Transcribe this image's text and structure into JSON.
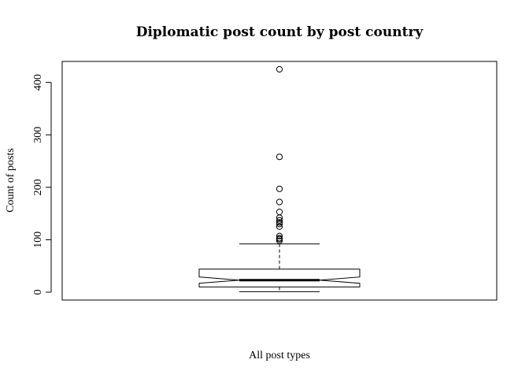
{
  "chart_data": {
    "type": "boxplot",
    "title": "Diplomatic post count by post country",
    "xlabel": "All post types",
    "ylabel": "Count of posts",
    "notched": true,
    "ylim": [
      -15,
      440
    ],
    "yticks": [
      0,
      100,
      200,
      300,
      400
    ],
    "box": {
      "whisker_low": 1,
      "q1": 10,
      "notch_low": 17,
      "median": 23,
      "notch_high": 29,
      "q3": 44,
      "whisker_high": 92
    },
    "outliers": [
      98,
      101,
      103,
      107,
      125,
      130,
      133,
      137,
      142,
      153,
      172,
      197,
      258,
      425
    ],
    "grid": false,
    "legend": "none"
  }
}
